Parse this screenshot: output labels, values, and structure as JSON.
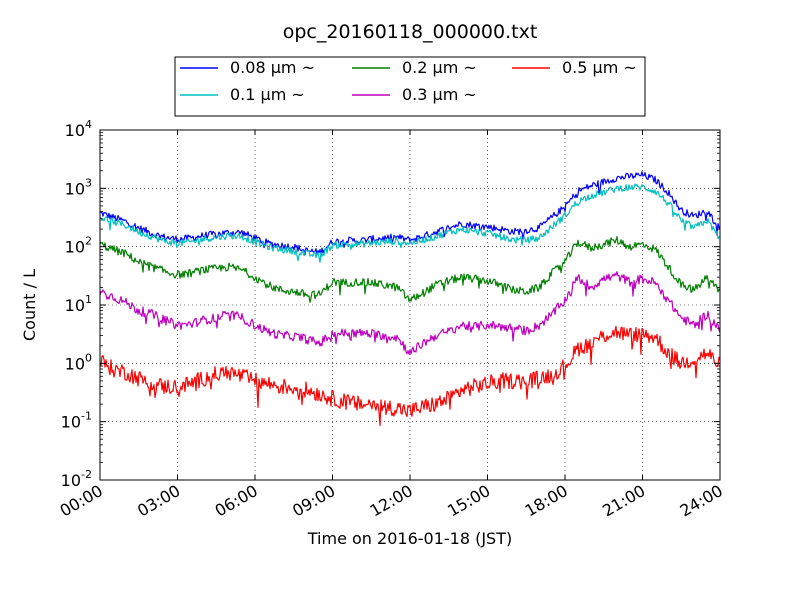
{
  "chart_data": {
    "type": "line",
    "title": "opc_20160118_000000.txt",
    "xlabel": "Time on 2016-01-18 (JST)",
    "ylabel": "Count / L",
    "y_scale": "log",
    "ylim": [
      0.01,
      10000
    ],
    "xlim": [
      "2016-01-18T00:00",
      "2016-01-19T00:00"
    ],
    "grid": true,
    "legend_position": "top",
    "x_tick_labels": [
      "00:00",
      "03:00",
      "06:00",
      "09:00",
      "12:00",
      "15:00",
      "18:00",
      "21:00",
      "24:00"
    ],
    "y_tick_labels": [
      {
        "base": "10",
        "exp": "-2"
      },
      {
        "base": "10",
        "exp": "-1"
      },
      {
        "base": "10",
        "exp": "0"
      },
      {
        "base": "10",
        "exp": "1"
      },
      {
        "base": "10",
        "exp": "2"
      },
      {
        "base": "10",
        "exp": "3"
      },
      {
        "base": "10",
        "exp": "4"
      }
    ],
    "x": [
      "00:00",
      "00:30",
      "01:00",
      "01:30",
      "02:00",
      "02:30",
      "03:00",
      "03:30",
      "04:00",
      "04:30",
      "05:00",
      "05:30",
      "06:00",
      "06:30",
      "07:00",
      "07:30",
      "08:00",
      "08:30",
      "09:00",
      "09:30",
      "10:00",
      "10:30",
      "11:00",
      "11:30",
      "12:00",
      "12:30",
      "13:00",
      "13:30",
      "14:00",
      "14:30",
      "15:00",
      "15:30",
      "16:00",
      "16:30",
      "17:00",
      "17:30",
      "18:00",
      "18:30",
      "19:00",
      "19:30",
      "20:00",
      "20:30",
      "21:00",
      "21:30",
      "22:00",
      "22:30",
      "23:00",
      "23:30",
      "24:00"
    ],
    "series": [
      {
        "name": "0.08 μm ~",
        "color": "#0000ff",
        "values": [
          380,
          320,
          270,
          210,
          170,
          145,
          135,
          140,
          155,
          165,
          175,
          175,
          140,
          115,
          105,
          100,
          85,
          80,
          120,
          130,
          125,
          135,
          140,
          145,
          130,
          150,
          180,
          210,
          250,
          230,
          220,
          200,
          180,
          190,
          210,
          320,
          480,
          900,
          1100,
          1300,
          1500,
          1600,
          1700,
          1400,
          850,
          420,
          330,
          420,
          200
        ]
      },
      {
        "name": "0.1 μm ~",
        "color": "#00bfbf",
        "values": [
          320,
          270,
          230,
          180,
          150,
          125,
          115,
          120,
          135,
          145,
          155,
          150,
          120,
          100,
          90,
          85,
          75,
          70,
          105,
          110,
          110,
          115,
          120,
          125,
          115,
          130,
          150,
          175,
          200,
          180,
          170,
          150,
          130,
          130,
          140,
          220,
          340,
          600,
          750,
          850,
          1000,
          1050,
          1050,
          900,
          550,
          280,
          210,
          280,
          140
        ]
      },
      {
        "name": "0.2 μm ~",
        "color": "#008000",
        "values": [
          110,
          90,
          75,
          55,
          45,
          38,
          33,
          35,
          40,
          42,
          45,
          40,
          30,
          22,
          18,
          17,
          15,
          15,
          25,
          24,
          25,
          24,
          22,
          20,
          12,
          16,
          22,
          26,
          30,
          28,
          26,
          22,
          18,
          17,
          20,
          35,
          55,
          120,
          95,
          110,
          130,
          100,
          110,
          90,
          45,
          22,
          18,
          30,
          17
        ]
      },
      {
        "name": "0.3 μm ~",
        "color": "#bf00bf",
        "values": [
          17,
          14,
          11,
          8,
          7,
          5.5,
          4.5,
          4.7,
          5.5,
          6,
          7,
          6,
          4.5,
          3.5,
          3,
          2.9,
          2.6,
          2.2,
          3.2,
          3.3,
          3.3,
          3.2,
          3,
          2.8,
          1.5,
          2.2,
          3,
          3.5,
          4.5,
          4.2,
          4.6,
          4.3,
          4,
          3.6,
          4.5,
          7,
          12,
          30,
          20,
          28,
          32,
          25,
          28,
          24,
          12,
          6,
          4.5,
          7,
          3.8
        ]
      },
      {
        "name": "0.5 μm ~",
        "color": "#ff0000",
        "values": [
          1.1,
          0.8,
          0.7,
          0.55,
          0.45,
          0.4,
          0.4,
          0.45,
          0.55,
          0.65,
          0.7,
          0.6,
          0.5,
          0.45,
          0.4,
          0.38,
          0.35,
          0.3,
          0.25,
          0.22,
          0.2,
          0.2,
          0.18,
          0.17,
          0.15,
          0.18,
          0.2,
          0.25,
          0.35,
          0.4,
          0.45,
          0.5,
          0.5,
          0.5,
          0.55,
          0.65,
          0.9,
          1.8,
          2.2,
          3,
          3.5,
          3,
          3.2,
          2.8,
          1.5,
          1,
          1.2,
          1.5,
          0.9
        ]
      }
    ]
  }
}
